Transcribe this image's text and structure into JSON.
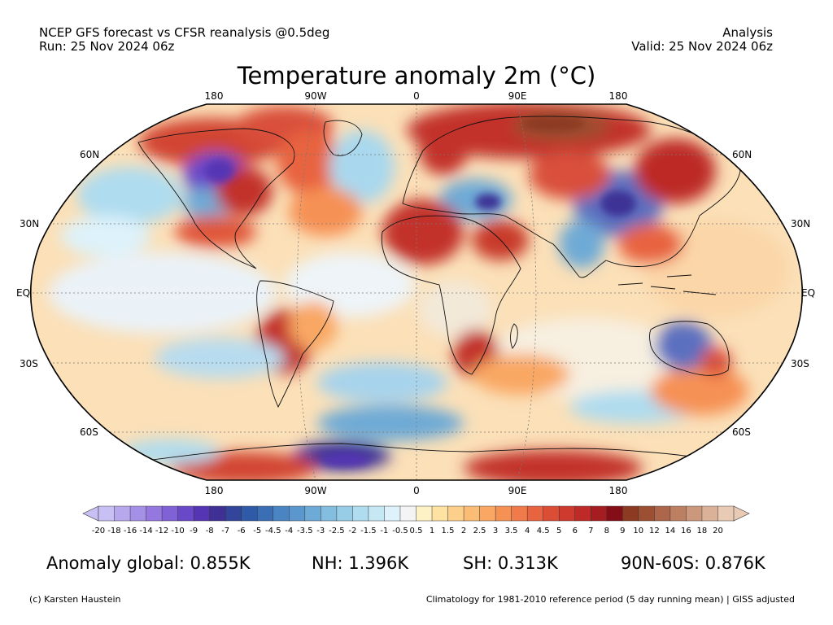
{
  "header": {
    "left_line1": "NCEP GFS forecast vs CFSR reanalysis @0.5deg",
    "left_line2": "Run: 25 Nov 2024 06z",
    "right_line1": "Analysis",
    "right_line2": "Valid: 25 Nov 2024 06z"
  },
  "title": "Temperature anomaly 2m (°C)",
  "map": {
    "projection": "Robinson",
    "lon_labels_top": [
      "180",
      "90W",
      "0",
      "90E",
      "180"
    ],
    "lon_labels_bottom": [
      "180",
      "90W",
      "0",
      "90E",
      "180"
    ],
    "lat_labels_left": [
      "60N",
      "30N",
      "EQ",
      "30S",
      "60S"
    ],
    "lat_labels_right": [
      "60N",
      "30N",
      "EQ",
      "30S",
      "60S"
    ]
  },
  "colorbar": {
    "labels": [
      "-20",
      "-18",
      "-16",
      "-14",
      "-12",
      "-10",
      "-9",
      "-8",
      "-7",
      "-6",
      "-5",
      "-4.5",
      "-4",
      "-3.5",
      "-3",
      "-2.5",
      "-2",
      "-1.5",
      "-1",
      "-0.5",
      "0.5",
      "1",
      "1.5",
      "2",
      "2.5",
      "3",
      "3.5",
      "4",
      "4.5",
      "5",
      "6",
      "7",
      "8",
      "9",
      "10",
      "12",
      "14",
      "16",
      "18",
      "20"
    ],
    "colors": [
      "#c8bff4",
      "#b7a8ee",
      "#a590e8",
      "#9478e0",
      "#8061d6",
      "#6a49c8",
      "#5535b4",
      "#3e3095",
      "#33459a",
      "#2f5aa8",
      "#3a6fb5",
      "#4a84c2",
      "#5b97cd",
      "#6eaad6",
      "#83bde0",
      "#98cde8",
      "#afdcef",
      "#c6e8f5",
      "#ddf2fa",
      "#f4f4f4",
      "#fdf1c6",
      "#fde2a2",
      "#fcd08a",
      "#fbbd75",
      "#f9a763",
      "#f69154",
      "#f07a49",
      "#e8633f",
      "#dc4d35",
      "#cf3a2e",
      "#bd2a27",
      "#a51c21",
      "#850d18",
      "#8c3a22",
      "#9c4f33",
      "#ad6649",
      "#bd7f62",
      "#cc987c",
      "#dbb298",
      "#e9cbb5"
    ]
  },
  "stats": {
    "global": "Anomaly global: 0.855K",
    "nh": "NH: 1.396K",
    "sh": "SH: 0.313K",
    "arctic": "90N-60S: 0.876K"
  },
  "footer": {
    "left": "(c) Karsten Haustein",
    "right": "Climatology for 1981-2010 reference period (5 day running mean) | GISS adjusted"
  }
}
